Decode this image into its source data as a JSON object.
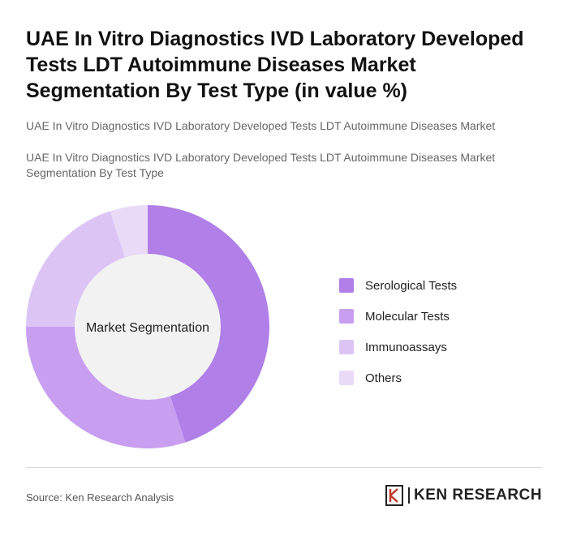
{
  "title": "UAE In Vitro Diagnostics IVD Laboratory Developed Tests LDT Autoimmune Diseases Market Segmentation By Test Type (in value %)",
  "subtitle_1": "UAE In Vitro Diagnostics IVD Laboratory Developed Tests LDT Autoimmune Diseases Market",
  "subtitle_2": "UAE In Vitro Diagnostics IVD Laboratory Developed Tests LDT Autoimmune Diseases Market Segmentation By Test Type",
  "source": "Source: Ken Research Analysis",
  "brand": "KEN RESEARCH",
  "chart_data": {
    "type": "pie",
    "variant": "donut",
    "center_label": "Market Segmentation",
    "categories": [
      "Serological Tests",
      "Molecular Tests",
      "Immunoassays",
      "Others"
    ],
    "values": [
      45,
      30,
      20,
      5
    ],
    "colors": [
      "#b07fe8",
      "#c89ff0",
      "#dcc5f5",
      "#e9dbf8"
    ],
    "legend_position": "right",
    "start_angle": "top",
    "direction": "clockwise"
  }
}
